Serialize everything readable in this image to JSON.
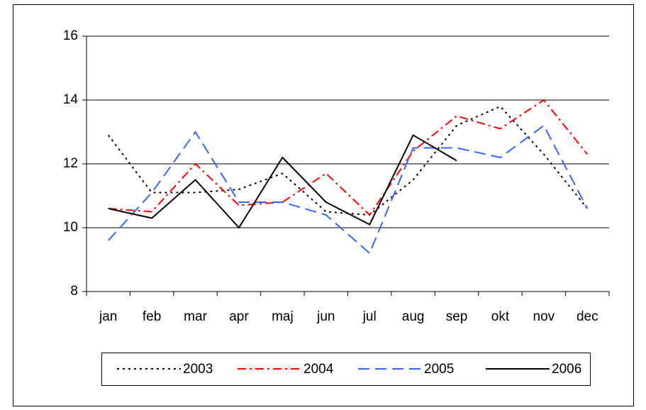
{
  "chart_data": {
    "type": "line",
    "categories": [
      "jan",
      "feb",
      "mar",
      "apr",
      "maj",
      "jun",
      "jul",
      "aug",
      "sep",
      "okt",
      "nov",
      "dec"
    ],
    "series": [
      {
        "name": "2003",
        "color": "#000000",
        "values": [
          12.9,
          11.1,
          11.1,
          11.2,
          11.7,
          10.5,
          10.4,
          11.5,
          13.2,
          13.8,
          12.3,
          10.6
        ]
      },
      {
        "name": "2004",
        "color": "#ff0000",
        "values": [
          10.6,
          10.5,
          12.0,
          10.7,
          10.8,
          11.7,
          10.4,
          12.4,
          13.5,
          13.1,
          14.0,
          12.3
        ]
      },
      {
        "name": "2005",
        "color": "#3366ff",
        "values": [
          9.6,
          11.1,
          13.0,
          10.8,
          10.8,
          10.4,
          9.2,
          12.5,
          12.5,
          12.2,
          13.2,
          10.6
        ]
      },
      {
        "name": "2006",
        "color": "#000000",
        "values": [
          10.6,
          10.3,
          11.5,
          10.0,
          12.2,
          10.8,
          10.1,
          12.9,
          12.1,
          null,
          null,
          null
        ]
      }
    ],
    "ylim": [
      8,
      16
    ],
    "yticks": [
      8,
      10,
      12,
      14,
      16
    ],
    "grid": true,
    "legend": "bottom"
  }
}
